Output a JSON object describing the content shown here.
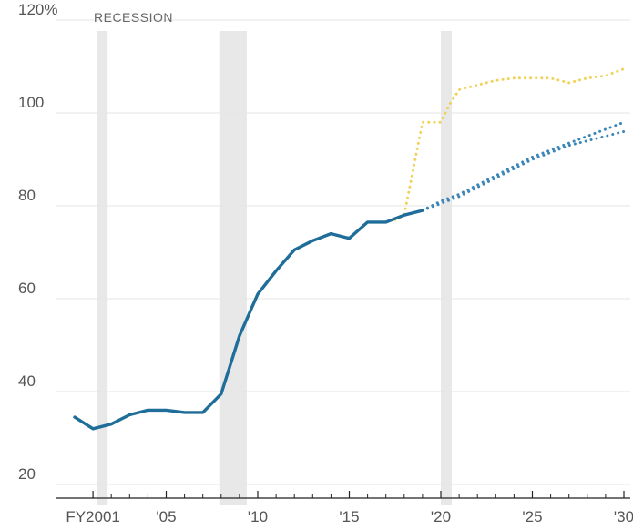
{
  "chart_data": {
    "type": "line",
    "title": "",
    "xlabel": "",
    "ylabel": "",
    "xlim": [
      2000,
      2030.5
    ],
    "ylim": [
      20,
      120
    ],
    "grid": true,
    "y_ticks": [
      20,
      40,
      60,
      80,
      100,
      120
    ],
    "y_tick_labels": [
      "20",
      "40",
      "60",
      "80",
      "100",
      "120%"
    ],
    "x_tick_values": [
      2001,
      2005,
      2010,
      2015,
      2020,
      2025,
      2030
    ],
    "x_tick_labels": [
      "FY2001",
      "'05",
      "'10",
      "'15",
      "'20",
      "'25",
      "'30"
    ],
    "x_minor_ticks": [
      2002,
      2003,
      2004,
      2006,
      2007,
      2008,
      2009,
      2011,
      2012,
      2013,
      2014,
      2016,
      2017,
      2018,
      2019,
      2021,
      2022,
      2023,
      2024,
      2026,
      2027,
      2028,
      2029
    ],
    "recession_label": "RECESSION",
    "recessions": [
      {
        "start": 2001.2,
        "end": 2001.8
      },
      {
        "start": 2007.9,
        "end": 2009.4
      },
      {
        "start": 2020.0,
        "end": 2020.6
      }
    ],
    "colors": {
      "actual": "#1f6e99",
      "projection_blue": "#3a86b8",
      "projection_yellow": "#f0d25a",
      "recession": "#e8e8e8",
      "grid": "#e6e6e6"
    },
    "series": [
      {
        "style": "solid",
        "color": "#1f6e99",
        "x": [
          2000,
          2001,
          2002,
          2003,
          2004,
          2005,
          2006,
          2007,
          2008,
          2009,
          2010,
          2011,
          2012,
          2013,
          2014,
          2015,
          2016,
          2017,
          2018,
          2019
        ],
        "y": [
          34.5,
          32,
          33,
          35,
          36,
          36,
          35.5,
          35.5,
          39.5,
          52,
          61,
          66,
          70.5,
          72.5,
          74,
          73,
          76.5,
          76.5,
          78,
          79
        ]
      },
      {
        "style": "dotted",
        "color": "#3a86b8",
        "x": [
          2019,
          2020,
          2021,
          2022,
          2023,
          2024,
          2025,
          2026,
          2027,
          2028,
          2029,
          2030
        ],
        "y": [
          79,
          80.5,
          82,
          84,
          86,
          88,
          90,
          91.5,
          93,
          94,
          95,
          96
        ]
      },
      {
        "style": "dotted",
        "color": "#3a86b8",
        "x": [
          2019,
          2020,
          2021,
          2022,
          2023,
          2024,
          2025,
          2026,
          2027,
          2028,
          2029,
          2030
        ],
        "y": [
          79,
          81,
          82.5,
          84.5,
          86.5,
          88.5,
          90.5,
          92,
          93.5,
          95,
          96.5,
          98
        ]
      },
      {
        "style": "dotted",
        "color": "#f0d25a",
        "x": [
          2017.5,
          2018,
          2018.5,
          2019,
          2019.5,
          2020,
          2020.5,
          2021,
          2022,
          2023,
          2024,
          2025,
          2026,
          2027,
          2028,
          2029,
          2030
        ],
        "y": [
          77,
          78,
          88,
          98,
          98,
          98,
          102,
          105,
          106,
          107,
          107.5,
          107.5,
          107.5,
          106.5,
          107.5,
          108,
          109.5
        ]
      }
    ]
  }
}
